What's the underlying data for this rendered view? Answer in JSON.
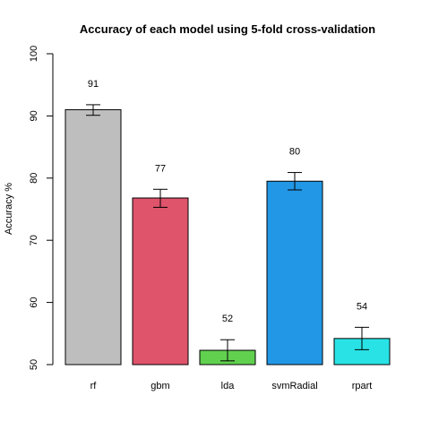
{
  "chart_data": {
    "type": "bar",
    "title": "Accuracy of each model using 5-fold cross-validation",
    "xlabel": "",
    "ylabel": "Accuracy %",
    "ylim": [
      50,
      100
    ],
    "yticks": [
      50,
      60,
      70,
      80,
      90,
      100
    ],
    "grid": false,
    "categories": [
      "rf",
      "gbm",
      "lda",
      "svmRadial",
      "rpart"
    ],
    "values": [
      91,
      77,
      52,
      80,
      54
    ],
    "display_values": [
      91,
      76.8,
      52.3,
      79.5,
      54.2
    ],
    "error_low": [
      90.1,
      75.3,
      50.6,
      78.1,
      52.4
    ],
    "error_high": [
      91.8,
      78.2,
      54.0,
      80.9,
      56.0
    ],
    "colors": [
      "#bebebe",
      "#df536b",
      "#61d04f",
      "#2297e6",
      "#28e2e5"
    ]
  }
}
